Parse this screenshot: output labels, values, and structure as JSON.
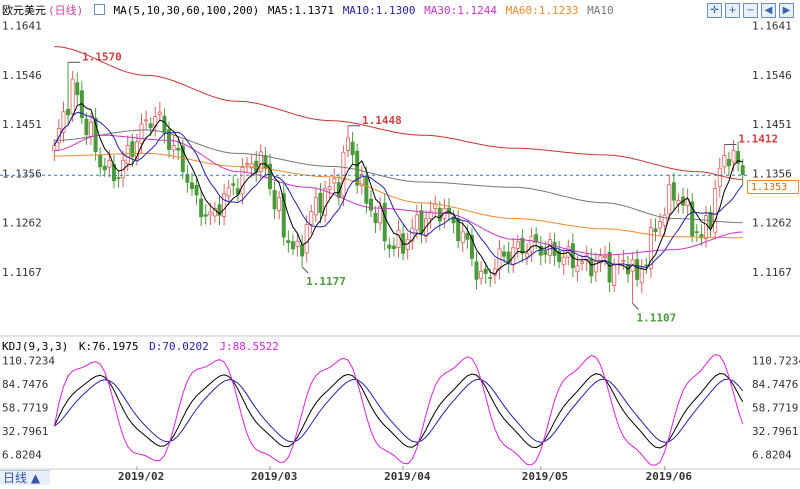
{
  "legend": {
    "symbol": "欧元美元",
    "period": "(日线)",
    "ma_label": "MA(5,10,30,60,100,200)",
    "ma5": "MA5:1.1371",
    "ma10": "MA10:1.1300",
    "ma30": "MA30:1.1244",
    "ma60": "MA60:1.1233",
    "ma100": "MA10"
  },
  "kdj_legend": {
    "name": "KDJ(9,3,3)",
    "k": "K:76.1975",
    "d": "D:70.0202",
    "j": "J:88.5522"
  },
  "period_tab": "日线 ▲",
  "current_price_tag": "1.1353",
  "colors": {
    "up": "#e06060",
    "down": "#4a9a3a",
    "ma5": "#000000",
    "ma10": "#2222aa",
    "ma30": "#cc33cc",
    "ma60": "#f08a2a",
    "ma100": "#777777",
    "ma200": "#cc3333",
    "k": "#000000",
    "d": "#2222aa",
    "j": "#dd22dd",
    "high_low_label_red": "#d04040",
    "high_low_label_green": "#4a9a3a"
  },
  "chart_data": [
    {
      "type": "candlestick",
      "y_ticks": [
        "1.1641",
        "1.1546",
        "1.1451",
        "1.1356",
        "1.1262",
        "1.1167"
      ],
      "ylim": [
        1.1075,
        1.1655
      ],
      "x_ticks": [
        "2019/02",
        "2019/03",
        "2019/04",
        "2019/05",
        "2019/06"
      ],
      "dashed_current_price": 1.1353,
      "annotations": [
        {
          "text": "1.1570",
          "value": 1.157,
          "kind": "high"
        },
        {
          "text": "1.1448",
          "value": 1.1448,
          "kind": "high"
        },
        {
          "text": "1.1412",
          "value": 1.1412,
          "kind": "high"
        },
        {
          "text": "1.1177",
          "value": 1.1177,
          "kind": "low"
        },
        {
          "text": "1.1107",
          "value": 1.1107,
          "kind": "low"
        }
      ],
      "anchors_close": [
        [
          0,
          1.14
        ],
        [
          2,
          1.147
        ],
        [
          4,
          1.152
        ],
        [
          7,
          1.145
        ],
        [
          10,
          1.138
        ],
        [
          13,
          1.135
        ],
        [
          16,
          1.139
        ],
        [
          19,
          1.144
        ],
        [
          22,
          1.147
        ],
        [
          25,
          1.142
        ],
        [
          28,
          1.137
        ],
        [
          31,
          1.13
        ],
        [
          34,
          1.127
        ],
        [
          37,
          1.131
        ],
        [
          40,
          1.134
        ],
        [
          43,
          1.138
        ],
        [
          46,
          1.137
        ],
        [
          48,
          1.13
        ],
        [
          51,
          1.123
        ],
        [
          53,
          1.12
        ],
        [
          56,
          1.128
        ],
        [
          59,
          1.132
        ],
        [
          62,
          1.134
        ],
        [
          64,
          1.142
        ],
        [
          66,
          1.136
        ],
        [
          68,
          1.13
        ],
        [
          70,
          1.128
        ],
        [
          73,
          1.122
        ],
        [
          76,
          1.122
        ],
        [
          78,
          1.125
        ],
        [
          81,
          1.127
        ],
        [
          84,
          1.129
        ],
        [
          87,
          1.126
        ],
        [
          90,
          1.122
        ],
        [
          93,
          1.115
        ],
        [
          95,
          1.117
        ],
        [
          98,
          1.12
        ],
        [
          101,
          1.121
        ],
        [
          104,
          1.122
        ],
        [
          107,
          1.121
        ],
        [
          110,
          1.12
        ],
        [
          113,
          1.119
        ],
        [
          116,
          1.118
        ],
        [
          119,
          1.119
        ],
        [
          122,
          1.117
        ],
        [
          125,
          1.119
        ],
        [
          127,
          1.115
        ],
        [
          129,
          1.12
        ],
        [
          131,
          1.125
        ],
        [
          133,
          1.129
        ],
        [
          135,
          1.132
        ],
        [
          137,
          1.13
        ],
        [
          139,
          1.126
        ],
        [
          141,
          1.123
        ],
        [
          143,
          1.128
        ],
        [
          145,
          1.136
        ],
        [
          147,
          1.14
        ],
        [
          149,
          1.137
        ],
        [
          150,
          1.1353
        ]
      ],
      "ma_series": [
        {
          "name": "MA200",
          "anchors": [
            [
              0,
              1.16
            ],
            [
              20,
              1.1545
            ],
            [
              40,
              1.1495
            ],
            [
              60,
              1.1458
            ],
            [
              80,
              1.143
            ],
            [
              100,
              1.1405
            ],
            [
              120,
              1.1392
            ],
            [
              140,
              1.136
            ],
            [
              150,
              1.1345
            ]
          ]
        },
        {
          "name": "MA100",
          "anchors": [
            [
              0,
              1.142
            ],
            [
              20,
              1.144
            ],
            [
              40,
              1.1395
            ],
            [
              60,
              1.137
            ],
            [
              80,
              1.134
            ],
            [
              100,
              1.133
            ],
            [
              120,
              1.13
            ],
            [
              135,
              1.127
            ],
            [
              150,
              1.1262
            ]
          ]
        },
        {
          "name": "MA60",
          "anchors": [
            [
              0,
              1.139
            ],
            [
              20,
              1.1395
            ],
            [
              40,
              1.137
            ],
            [
              60,
              1.135
            ],
            [
              80,
              1.13
            ],
            [
              100,
              1.127
            ],
            [
              120,
              1.125
            ],
            [
              135,
              1.1235
            ],
            [
              150,
              1.1233
            ]
          ]
        },
        {
          "name": "MA30",
          "anchors": [
            [
              0,
              1.14
            ],
            [
              10,
              1.143
            ],
            [
              25,
              1.142
            ],
            [
              40,
              1.136
            ],
            [
              55,
              1.133
            ],
            [
              70,
              1.129
            ],
            [
              85,
              1.128
            ],
            [
              100,
              1.123
            ],
            [
              120,
              1.12
            ],
            [
              135,
              1.121
            ],
            [
              150,
              1.1244
            ]
          ]
        }
      ]
    },
    {
      "type": "line",
      "name": "KDJ(9,3,3)",
      "y_ticks": [
        "110.7234",
        "84.7476",
        "58.7719",
        "32.7961",
        "6.8204"
      ],
      "ylim": [
        -5,
        120
      ],
      "series": [
        {
          "name": "K",
          "final": 76.1975
        },
        {
          "name": "D",
          "final": 70.0202
        },
        {
          "name": "J",
          "final": 88.5522
        }
      ]
    }
  ]
}
